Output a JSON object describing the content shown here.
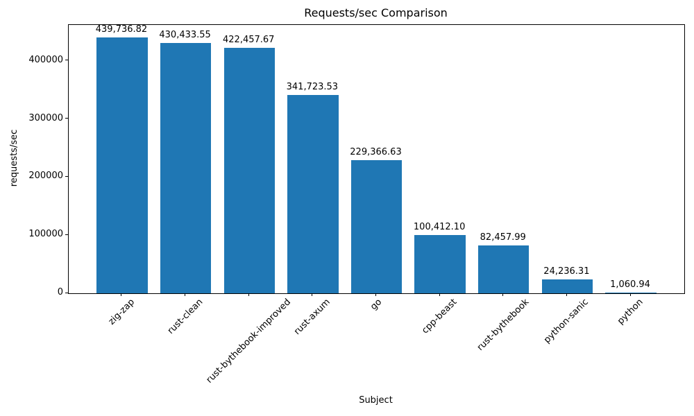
{
  "chart_data": {
    "type": "bar",
    "title": "Requests/sec Comparison",
    "xlabel": "Subject",
    "ylabel": "requests/sec",
    "categories": [
      "zig-zap",
      "rust-clean",
      "rust-bythebook-improved",
      "rust-axum",
      "go",
      "cpp-beast",
      "rust-bythebook",
      "python-sanic",
      "python"
    ],
    "values": [
      439736.82,
      430433.55,
      422457.67,
      341723.53,
      229366.63,
      100412.1,
      82457.99,
      24236.31,
      1060.94
    ],
    "value_labels": [
      "439,736.82",
      "430,433.55",
      "422,457.67",
      "341,723.53",
      "229,366.63",
      "100,412.10",
      "82,457.99",
      "24,236.31",
      "1,060.94"
    ],
    "yticks": [
      0,
      100000,
      200000,
      300000,
      400000
    ],
    "ytick_labels": [
      "0",
      "100000",
      "200000",
      "300000",
      "400000"
    ],
    "ylim": [
      0,
      461723.66
    ],
    "bar_color": "#1f77b4",
    "bar_rel_width": 0.8,
    "grid": false,
    "legend_position": "none",
    "x_tick_label_rotation_deg": 45
  }
}
